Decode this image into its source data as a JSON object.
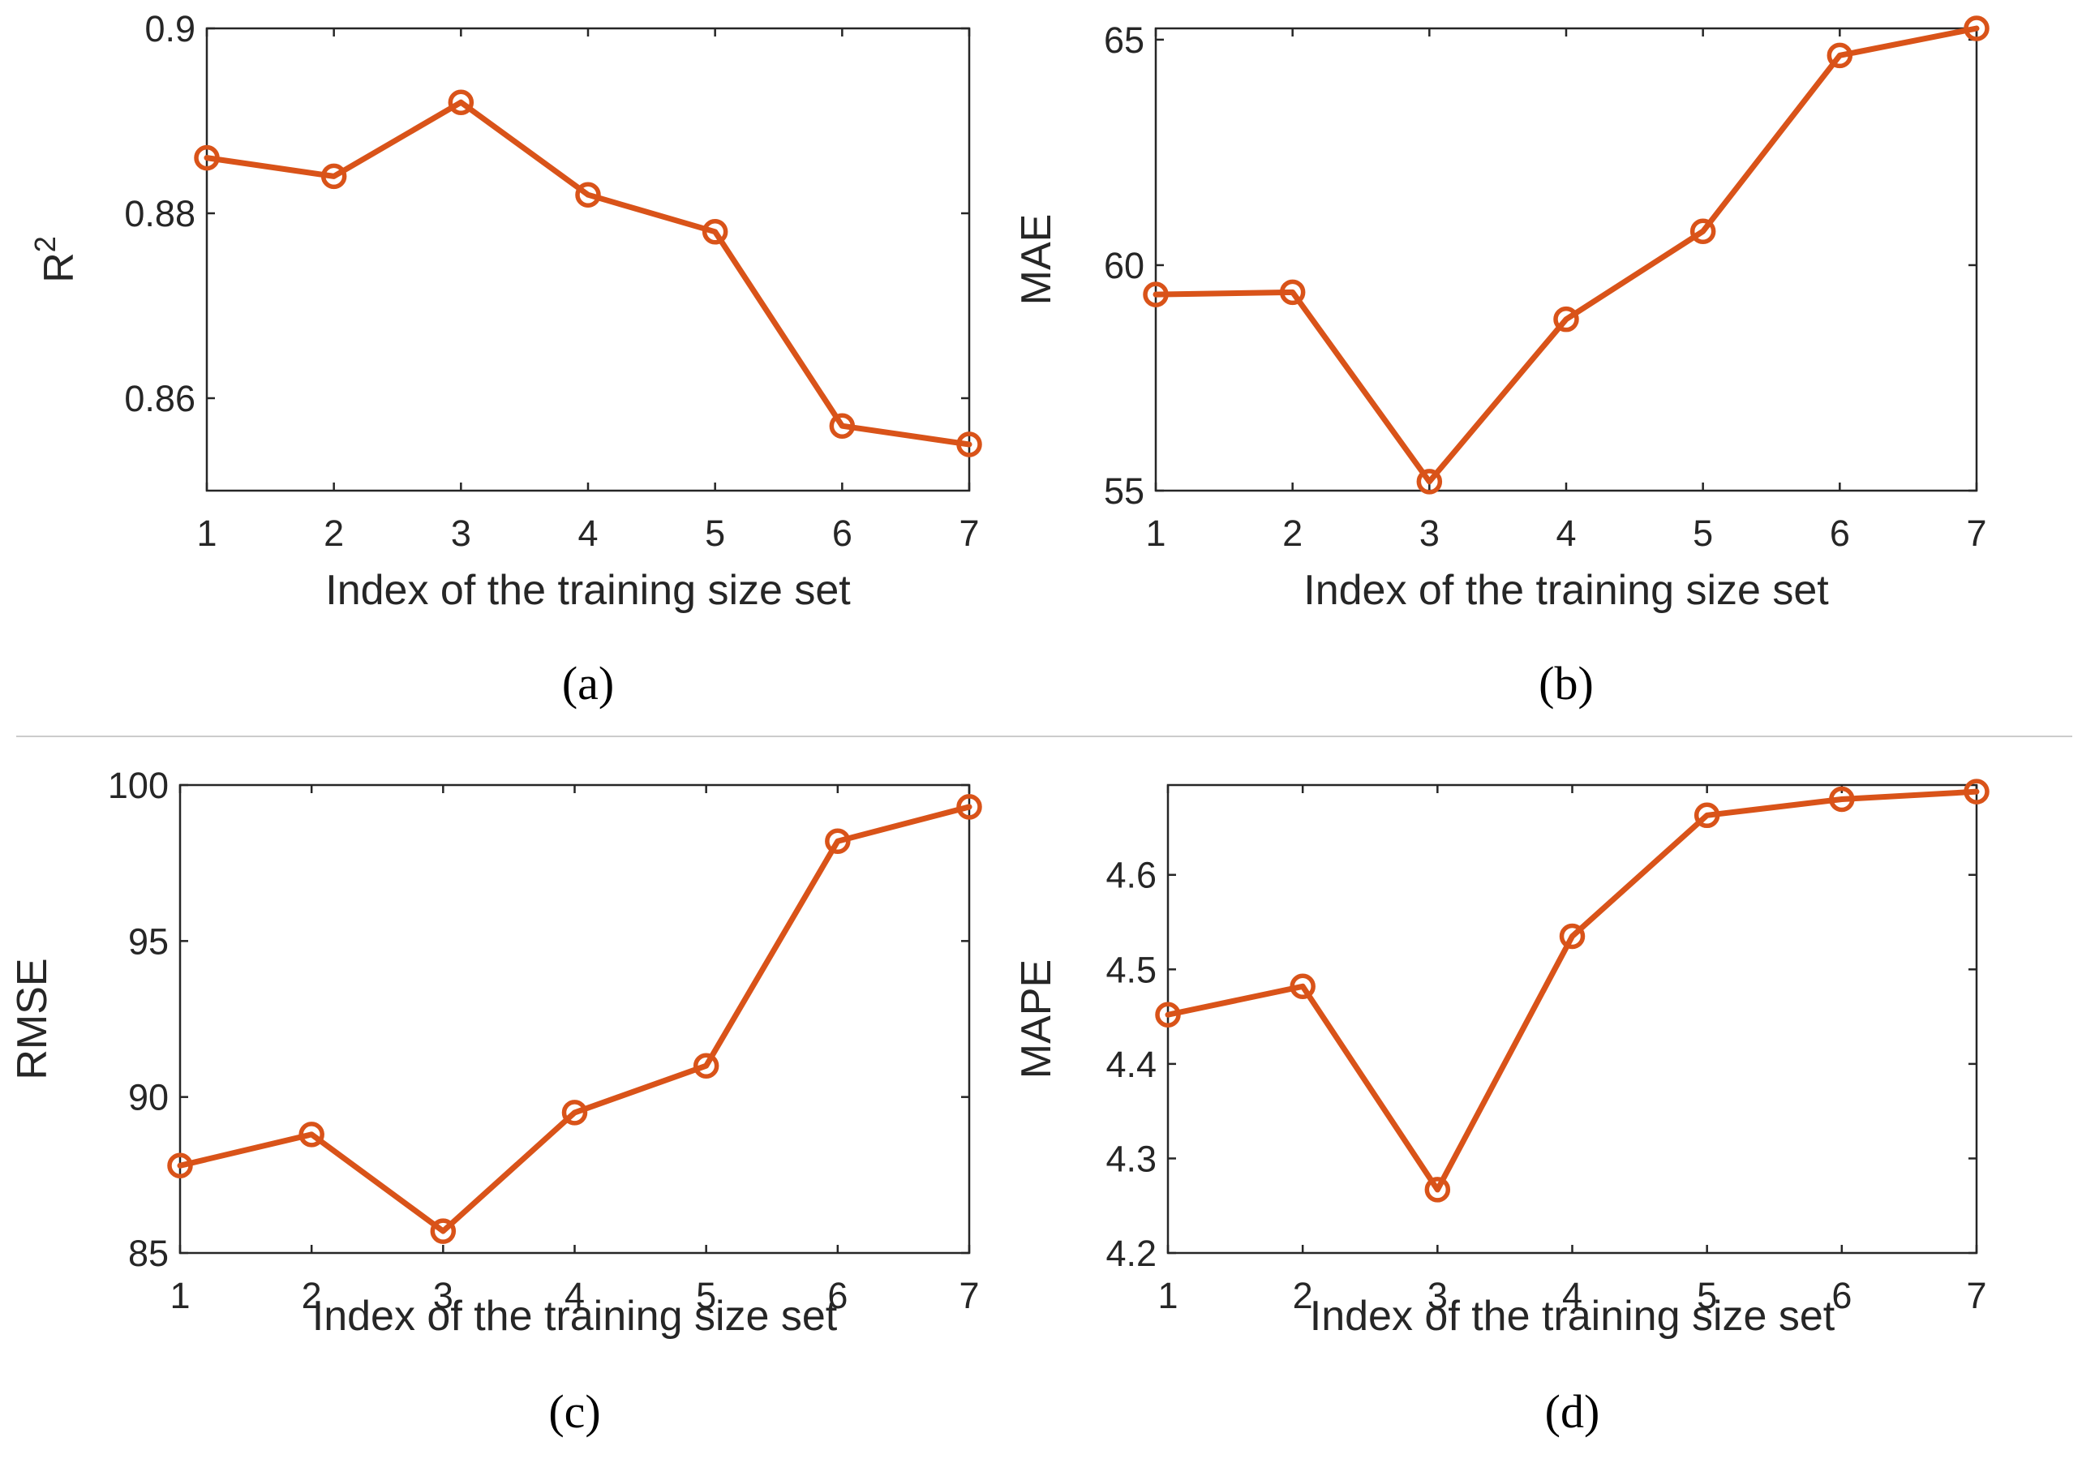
{
  "colors": {
    "line": "#d95319",
    "axes": "#262626",
    "divider": "#cccccc"
  },
  "chart_data": [
    {
      "type": "line",
      "caption": "(a)",
      "xlabel": "Index of the training size set",
      "ylabel": "R",
      "ylabel_superscript": "2",
      "x": [
        1,
        2,
        3,
        4,
        5,
        6,
        7
      ],
      "xlim": [
        1,
        7
      ],
      "ylim": [
        0.85,
        0.9
      ],
      "yticks": [
        0.86,
        0.88,
        0.9
      ],
      "ytick_labels": [
        "0.86",
        "0.88",
        "0.9"
      ],
      "grid": false,
      "series": [
        {
          "name": "R2",
          "values": [
            0.886,
            0.884,
            0.892,
            0.882,
            0.878,
            0.857,
            0.855
          ]
        }
      ]
    },
    {
      "type": "line",
      "caption": "(b)",
      "xlabel": "Index of the training size set",
      "ylabel": "MAE",
      "x": [
        1,
        2,
        3,
        4,
        5,
        6,
        7
      ],
      "xlim": [
        1,
        7
      ],
      "ylim": [
        55,
        65.25
      ],
      "yticks": [
        55,
        60,
        65
      ],
      "ytick_labels": [
        "55",
        "60",
        "65"
      ],
      "grid": false,
      "series": [
        {
          "name": "MAE",
          "values": [
            59.35,
            59.4,
            55.2,
            58.8,
            60.75,
            64.65,
            65.25
          ]
        }
      ]
    },
    {
      "type": "line",
      "caption": "(c)",
      "xlabel": "Index of the training size set",
      "ylabel": "RMSE",
      "x": [
        1,
        2,
        3,
        4,
        5,
        6,
        7
      ],
      "xlim": [
        1,
        7
      ],
      "ylim": [
        85,
        100
      ],
      "yticks": [
        85,
        90,
        95,
        100
      ],
      "ytick_labels": [
        "85",
        "90",
        "95",
        "100"
      ],
      "grid": false,
      "series": [
        {
          "name": "RMSE",
          "values": [
            87.8,
            88.8,
            85.7,
            89.5,
            91.0,
            98.2,
            99.3
          ]
        }
      ]
    },
    {
      "type": "line",
      "caption": "(d)",
      "xlabel": "Index of the training size set",
      "ylabel": "MAPE",
      "x": [
        1,
        2,
        3,
        4,
        5,
        6,
        7
      ],
      "xlim": [
        1,
        7
      ],
      "ylim": [
        4.2,
        4.695
      ],
      "yticks": [
        4.2,
        4.3,
        4.4,
        4.5,
        4.6
      ],
      "ytick_labels": [
        "4.2",
        "4.3",
        "4.4",
        "4.5",
        "4.6"
      ],
      "grid": false,
      "series": [
        {
          "name": "MAPE",
          "values": [
            4.452,
            4.482,
            4.267,
            4.535,
            4.663,
            4.68,
            4.688
          ]
        }
      ]
    }
  ]
}
